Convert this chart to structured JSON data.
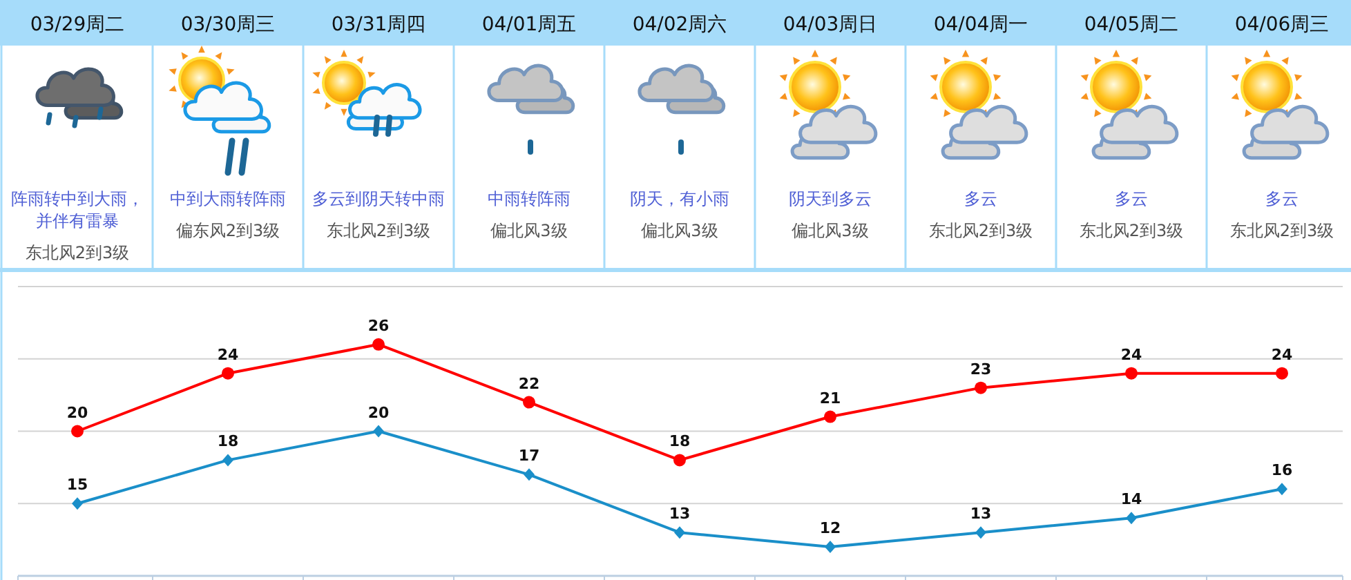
{
  "chart_data": {
    "type": "line",
    "categories": [
      "03/29周二",
      "03/30周三",
      "03/31周四",
      "04/01周五",
      "04/02周六",
      "04/03周日",
      "04/04周一",
      "04/05周二",
      "04/06周三"
    ],
    "series": [
      {
        "color": "#ff0000",
        "marker": "circle",
        "values": [
          20,
          24,
          26,
          22,
          18,
          21,
          23,
          24,
          24
        ]
      },
      {
        "color": "#1a8fc9",
        "marker": "diamond",
        "values": [
          15,
          18,
          20,
          17,
          13,
          12,
          13,
          14,
          16
        ]
      }
    ],
    "data_labels": true,
    "ylim": [
      10,
      30
    ],
    "yticks": [
      {
        "value": 15,
        "label": null
      },
      {
        "value": 20,
        "label": null
      },
      {
        "value": 25,
        "label": null
      },
      {
        "value": 30,
        "label": null
      }
    ],
    "grid": "y",
    "tick_labels": "x",
    "annotations": [
      "阵雨转中到大雨，并伴有雷暴",
      "中到大雨转阵雨",
      "多云到阴天转中雨",
      "中雨转阵雨",
      "阴天，有小雨",
      "阴天到多云",
      "多云",
      "多云",
      "多云",
      "东北风2到3级",
      "偏东风2到3级",
      "东北风2到3级",
      "偏北风3级",
      "偏北风3级",
      "偏北风3级",
      "东北风2到3级",
      "东北风2到3级",
      "东北风2到3级"
    ]
  }
}
